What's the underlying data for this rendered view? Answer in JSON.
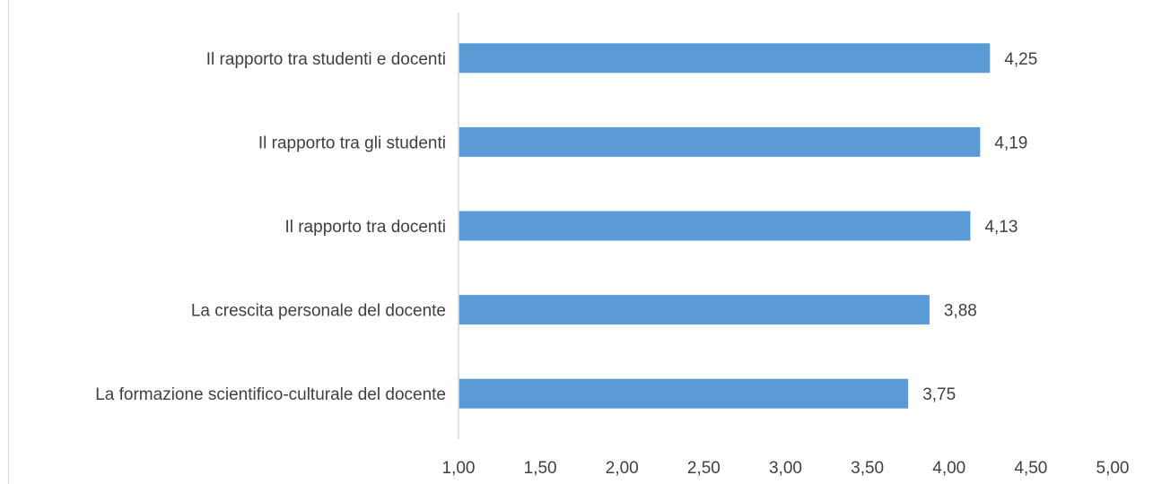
{
  "chart_data": {
    "type": "bar",
    "orientation": "horizontal",
    "categories": [
      "Il rapporto tra studenti e docenti",
      "Il rapporto tra gli studenti",
      "Il rapporto tra docenti",
      "La crescita personale del docente",
      "La formazione scientifico-culturale del docente"
    ],
    "values": [
      4.25,
      4.19,
      4.13,
      3.88,
      3.75
    ],
    "value_labels": [
      "4,25",
      "4,19",
      "4,13",
      "3,88",
      "3,75"
    ],
    "xlim": [
      1.0,
      5.0
    ],
    "x_ticks": [
      1.0,
      1.5,
      2.0,
      2.5,
      3.0,
      3.5,
      4.0,
      4.5,
      5.0
    ],
    "x_tick_labels": [
      "1,00",
      "1,50",
      "2,00",
      "2,50",
      "3,00",
      "3,50",
      "4,00",
      "4,50",
      "5,00"
    ],
    "title": "",
    "xlabel": "",
    "ylabel": "",
    "grid": false,
    "legend": "none",
    "bar_color": "#5b9bd5",
    "axis_color": "#d9d9d9",
    "text_color": "#404040"
  }
}
